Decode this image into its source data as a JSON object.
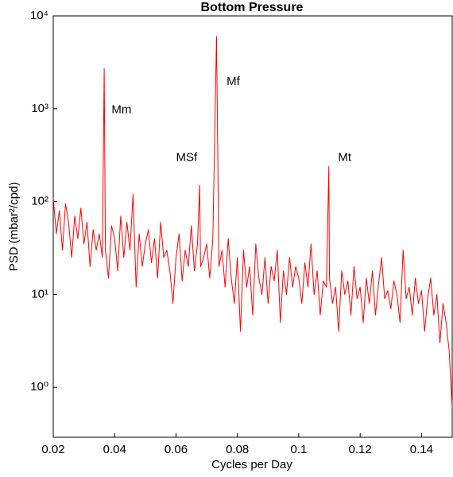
{
  "chart_data": {
    "type": "line",
    "title": "Bottom Pressure",
    "xlabel": "Cycles per Day",
    "ylabel": "PSD (mbar²/cpd)",
    "yscale": "log",
    "xlim": [
      0.02,
      0.15
    ],
    "ylim": [
      0.29,
      10000
    ],
    "xticks": [
      0.02,
      0.04,
      0.06,
      0.08,
      0.1,
      0.12,
      0.14
    ],
    "yticks": [
      {
        "value": 1,
        "label": "10⁰"
      },
      {
        "value": 10,
        "label": "10¹"
      },
      {
        "value": 100,
        "label": "10²"
      },
      {
        "value": 1000,
        "label": "10³"
      },
      {
        "value": 10000,
        "label": "10⁴"
      }
    ],
    "annotations": [
      {
        "text": "Mm",
        "x": 0.039,
        "y": 970
      },
      {
        "text": "MSf",
        "x": 0.06,
        "y": 295
      },
      {
        "text": "Mf",
        "x": 0.0765,
        "y": 1950
      },
      {
        "text": "Mt",
        "x": 0.1128,
        "y": 295
      }
    ],
    "series": [
      {
        "color": "#ff0000",
        "x": [
          0.02,
          0.021,
          0.022,
          0.023,
          0.024,
          0.025,
          0.026,
          0.027,
          0.028,
          0.029,
          0.03,
          0.031,
          0.032,
          0.033,
          0.034,
          0.035,
          0.036,
          0.0366,
          0.037,
          0.038,
          0.039,
          0.04,
          0.041,
          0.042,
          0.043,
          0.044,
          0.045,
          0.046,
          0.047,
          0.048,
          0.049,
          0.05,
          0.051,
          0.052,
          0.053,
          0.054,
          0.055,
          0.056,
          0.057,
          0.058,
          0.059,
          0.06,
          0.061,
          0.062,
          0.063,
          0.064,
          0.065,
          0.066,
          0.067,
          0.0677,
          0.068,
          0.069,
          0.07,
          0.071,
          0.072,
          0.0732,
          0.074,
          0.075,
          0.076,
          0.077,
          0.078,
          0.079,
          0.08,
          0.081,
          0.082,
          0.083,
          0.084,
          0.085,
          0.086,
          0.087,
          0.088,
          0.089,
          0.09,
          0.091,
          0.092,
          0.093,
          0.094,
          0.095,
          0.096,
          0.097,
          0.098,
          0.099,
          0.1,
          0.101,
          0.102,
          0.103,
          0.104,
          0.105,
          0.106,
          0.107,
          0.108,
          0.109,
          0.1098,
          0.11,
          0.111,
          0.112,
          0.113,
          0.114,
          0.115,
          0.116,
          0.117,
          0.118,
          0.119,
          0.12,
          0.121,
          0.122,
          0.123,
          0.124,
          0.125,
          0.126,
          0.127,
          0.128,
          0.129,
          0.13,
          0.131,
          0.132,
          0.133,
          0.134,
          0.135,
          0.136,
          0.137,
          0.138,
          0.139,
          0.14,
          0.141,
          0.142,
          0.143,
          0.144,
          0.145,
          0.146,
          0.147,
          0.148,
          0.149,
          0.15
        ],
        "values": [
          110,
          45,
          80,
          30,
          95,
          60,
          25,
          70,
          40,
          85,
          35,
          60,
          20,
          50,
          30,
          45,
          25,
          2700,
          30,
          15,
          55,
          40,
          18,
          70,
          25,
          60,
          30,
          120,
          12,
          45,
          20,
          35,
          50,
          22,
          40,
          15,
          60,
          25,
          30,
          18,
          8,
          25,
          45,
          14,
          30,
          20,
          55,
          18,
          35,
          150,
          20,
          25,
          35,
          15,
          40,
          6000,
          20,
          30,
          12,
          40,
          15,
          8,
          25,
          4,
          30,
          12,
          20,
          6,
          35,
          15,
          10,
          25,
          8,
          20,
          14,
          30,
          5,
          18,
          10,
          25,
          12,
          20,
          15,
          8,
          22,
          12,
          35,
          10,
          18,
          6,
          14,
          12,
          240,
          15,
          8,
          12,
          4,
          18,
          10,
          14,
          6,
          20,
          9,
          12,
          5,
          15,
          8,
          18,
          6,
          13,
          25,
          9,
          11,
          7,
          14,
          10,
          5,
          30,
          9,
          12,
          6,
          15,
          8,
          11,
          4,
          9,
          15,
          6,
          10,
          3,
          8,
          5,
          2.5,
          0.6
        ]
      }
    ]
  }
}
